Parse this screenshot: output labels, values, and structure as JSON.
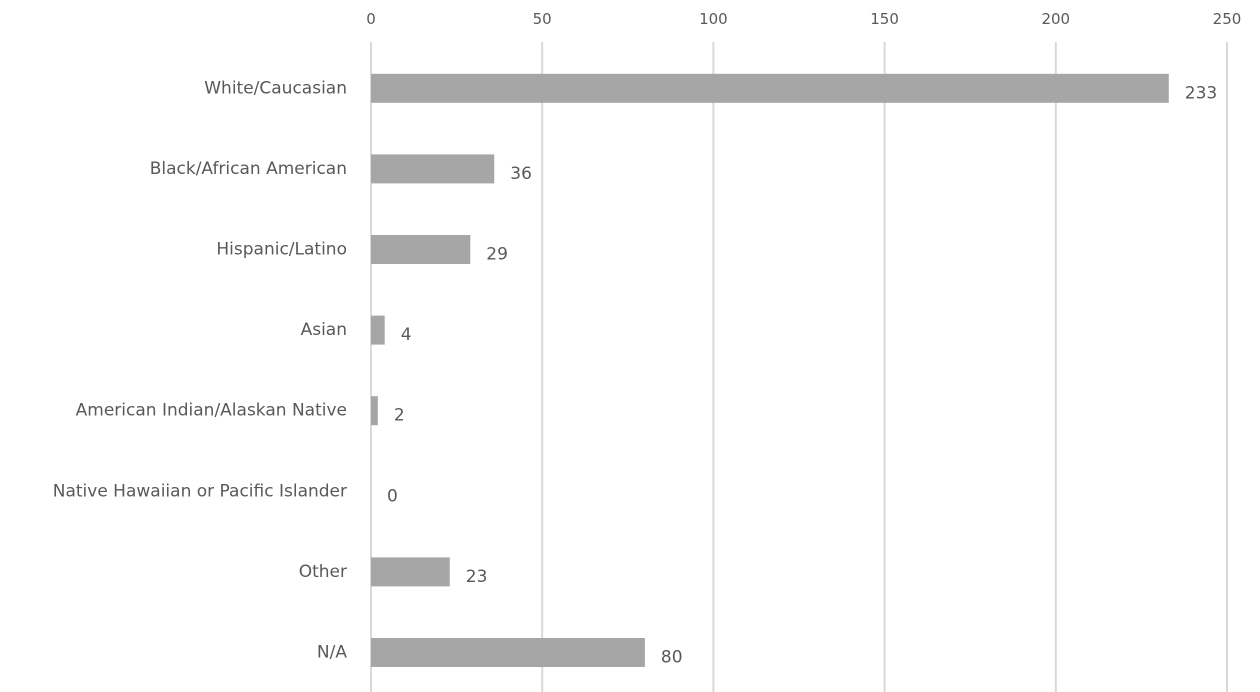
{
  "chart_data": {
    "type": "bar",
    "orientation": "horizontal",
    "categories": [
      "White/Caucasian",
      "Black/African American",
      "Hispanic/Latino",
      "Asian",
      "American Indian/Alaskan Native",
      "Native Hawaiian or Pacific Islander",
      "Other",
      "N/A"
    ],
    "values": [
      233,
      36,
      29,
      4,
      2,
      0,
      23,
      80
    ],
    "title": "",
    "xlabel": "",
    "ylabel": "",
    "xlim": [
      0,
      250
    ],
    "ticks": [
      "0",
      "50",
      "100",
      "150",
      "200",
      "250"
    ],
    "axis_position": "top",
    "grid": true,
    "legend": "none",
    "bar_color": "#a6a6a6"
  }
}
